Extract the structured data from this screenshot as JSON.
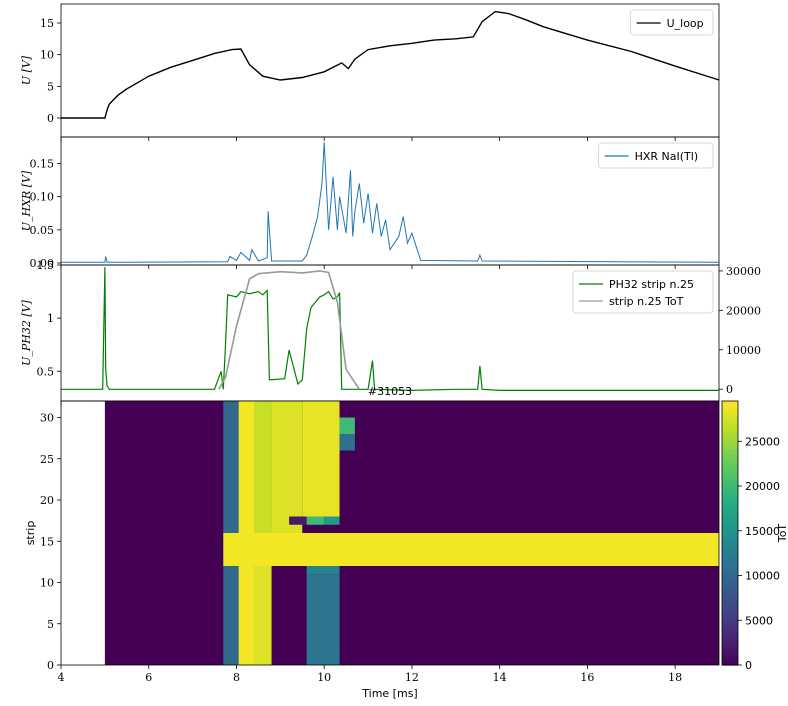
{
  "chart_data": [
    {
      "type": "line",
      "panel": "loop-voltage",
      "ylabel": "U [V]",
      "ylim": [
        -3,
        18
      ],
      "yticks": [
        0,
        5,
        10,
        15
      ],
      "xlim": [
        4,
        19
      ],
      "legend": [
        "U_loop"
      ],
      "legend_position": "top-right",
      "series": [
        {
          "name": "U_loop",
          "color": "#000000",
          "x": [
            4.0,
            5.0,
            5.05,
            5.1,
            5.3,
            5.5,
            5.8,
            6.0,
            6.5,
            7.0,
            7.5,
            7.9,
            8.1,
            8.3,
            8.6,
            9.0,
            9.5,
            10.0,
            10.4,
            10.55,
            10.7,
            11.0,
            11.5,
            12.0,
            12.5,
            13.0,
            13.4,
            13.6,
            13.9,
            14.2,
            14.6,
            15.0,
            16.0,
            17.0,
            18.0,
            19.0
          ],
          "y": [
            0,
            0,
            1.3,
            2.2,
            3.6,
            4.6,
            5.8,
            6.6,
            8.0,
            9.1,
            10.2,
            10.8,
            10.9,
            8.4,
            6.6,
            6.0,
            6.4,
            7.3,
            8.7,
            7.8,
            9.3,
            10.8,
            11.4,
            11.8,
            12.3,
            12.5,
            12.8,
            15.2,
            16.8,
            16.5,
            15.5,
            14.4,
            12.3,
            10.5,
            8.2,
            6.0
          ]
        }
      ]
    },
    {
      "type": "line",
      "panel": "hxr",
      "ylabel": "U_HXR [V]",
      "ylim": [
        -0.003,
        0.19
      ],
      "yticks": [
        0.0,
        0.05,
        0.1,
        0.15
      ],
      "ytick_labels": [
        "0.00",
        "0.05",
        "0.10",
        "0.15"
      ],
      "xlim": [
        4,
        19
      ],
      "legend": [
        "HXR NaI(Tl)"
      ],
      "legend_position": "top-right",
      "series": [
        {
          "name": "HXR NaI(Tl)",
          "color": "#1f77b4",
          "x": [
            4.0,
            5.0,
            5.02,
            5.05,
            7.8,
            7.85,
            8.0,
            8.1,
            8.3,
            8.35,
            8.5,
            8.7,
            8.72,
            8.8,
            9.5,
            9.6,
            9.75,
            9.85,
            9.95,
            10.0,
            10.1,
            10.2,
            10.3,
            10.35,
            10.5,
            10.6,
            10.65,
            10.7,
            10.8,
            10.9,
            11.0,
            11.1,
            11.2,
            11.3,
            11.4,
            11.5,
            11.7,
            11.8,
            11.9,
            12.0,
            12.2,
            13.5,
            13.55,
            13.6,
            19.0
          ],
          "y": [
            0.001,
            0.001,
            0.01,
            0.001,
            0.002,
            0.01,
            0.004,
            0.016,
            0.004,
            0.02,
            0.003,
            0.008,
            0.078,
            0.003,
            0.003,
            0.012,
            0.045,
            0.07,
            0.12,
            0.182,
            0.05,
            0.13,
            0.05,
            0.1,
            0.045,
            0.14,
            0.04,
            0.078,
            0.12,
            0.06,
            0.105,
            0.045,
            0.09,
            0.04,
            0.065,
            0.02,
            0.04,
            0.07,
            0.03,
            0.045,
            0.004,
            0.003,
            0.012,
            0.003,
            0.001
          ]
        }
      ]
    },
    {
      "type": "line",
      "panel": "ph32",
      "ylabel": "U_PH32 [V]",
      "ylim": [
        0.22,
        1.5
      ],
      "yticks": [
        0.5,
        1.0,
        1.5
      ],
      "secondary_ylim": [
        -3000,
        31500
      ],
      "secondary_yticks": [
        0,
        10000,
        20000,
        30000
      ],
      "xlim": [
        4,
        19
      ],
      "legend": [
        "PH32 strip n.25",
        "strip n.25 ToT"
      ],
      "legend_position": "top-right",
      "series": [
        {
          "name": "PH32 strip n.25",
          "color": "#008000",
          "axis": "left",
          "x": [
            4.0,
            4.95,
            5.0,
            5.02,
            5.05,
            5.1,
            7.5,
            7.65,
            7.7,
            7.75,
            7.8,
            8.0,
            8.1,
            8.3,
            8.5,
            8.6,
            8.7,
            8.75,
            9.1,
            9.2,
            9.4,
            9.5,
            9.6,
            9.7,
            9.9,
            10.0,
            10.1,
            10.2,
            10.3,
            10.35,
            10.4,
            11.0,
            11.1,
            11.15,
            12.0,
            13.0,
            13.5,
            13.55,
            13.6,
            14.0,
            15.0,
            16.0,
            17.0,
            18.0,
            19.0
          ],
          "y": [
            0.33,
            0.33,
            1.48,
            0.52,
            0.36,
            0.33,
            0.33,
            0.5,
            0.33,
            0.75,
            1.22,
            1.2,
            1.25,
            1.23,
            1.25,
            1.22,
            1.26,
            0.42,
            0.43,
            0.7,
            0.38,
            0.42,
            0.9,
            1.1,
            1.2,
            1.22,
            1.25,
            1.18,
            1.2,
            1.24,
            0.33,
            0.33,
            0.6,
            0.33,
            0.32,
            0.33,
            0.33,
            0.55,
            0.33,
            0.32,
            0.32,
            0.32,
            0.32,
            0.32,
            0.32
          ]
        },
        {
          "name": "strip n.25 ToT",
          "color": "#999999",
          "axis": "right",
          "x": [
            7.6,
            7.75,
            8.0,
            8.3,
            8.5,
            9.0,
            9.5,
            9.9,
            10.1,
            10.3,
            10.5,
            10.8
          ],
          "y": [
            0,
            3000,
            16000,
            28000,
            29300,
            29800,
            29500,
            30000,
            29600,
            22000,
            5000,
            0
          ]
        }
      ]
    },
    {
      "type": "heatmap",
      "panel": "strip-tot",
      "title": "#31053",
      "xlabel": "Time [ms]",
      "ylabel": "strip",
      "xlim": [
        4,
        19
      ],
      "ylim": [
        0,
        32
      ],
      "xticks": [
        4,
        6,
        8,
        10,
        12,
        14,
        16,
        18
      ],
      "yticks": [
        0,
        5,
        10,
        15,
        20,
        25,
        30
      ],
      "colorbar_label": "ToT",
      "colorbar_range": [
        0,
        29500
      ],
      "colorbar_ticks": [
        0,
        5000,
        10000,
        15000,
        20000,
        25000
      ],
      "colormap": "viridis",
      "background_region": {
        "x": [
          5.0,
          19.0
        ],
        "y": [
          0,
          32
        ],
        "value": 0
      },
      "cells": [
        {
          "x": [
            7.7,
            8.05
          ],
          "y": [
            0,
            32
          ],
          "value": 10000
        },
        {
          "x": [
            8.05,
            8.4
          ],
          "y": [
            0,
            32
          ],
          "value": 29000
        },
        {
          "x": [
            8.4,
            8.8
          ],
          "y": [
            0,
            12
          ],
          "value": 28000
        },
        {
          "x": [
            8.4,
            8.8
          ],
          "y": [
            12,
            32
          ],
          "value": 27000
        },
        {
          "x": [
            8.8,
            9.5
          ],
          "y": [
            15,
            32
          ],
          "value": 28000
        },
        {
          "x": [
            9.5,
            10.35
          ],
          "y": [
            18,
            32
          ],
          "value": 28500
        },
        {
          "x": [
            9.6,
            10.35
          ],
          "y": [
            0,
            11
          ],
          "value": 11500
        },
        {
          "x": [
            9.6,
            10.35
          ],
          "y": [
            11,
            15
          ],
          "value": 13000
        },
        {
          "x": [
            9.2,
            9.6
          ],
          "y": [
            17,
            18
          ],
          "value": 2000
        },
        {
          "x": [
            9.6,
            10.0
          ],
          "y": [
            17,
            18
          ],
          "value": 20000
        },
        {
          "x": [
            10.0,
            10.35
          ],
          "y": [
            17,
            18
          ],
          "value": 16000
        },
        {
          "x": [
            10.35,
            10.7
          ],
          "y": [
            28,
            30
          ],
          "value": 20000
        },
        {
          "x": [
            10.35,
            10.7
          ],
          "y": [
            26,
            28
          ],
          "value": 11000
        },
        {
          "x": [
            7.7,
            19.0
          ],
          "y": [
            12,
            16
          ],
          "value": 29000
        }
      ]
    }
  ],
  "shared_xtick_labels": [
    "4",
    "6",
    "8",
    "10",
    "12",
    "14",
    "16",
    "18"
  ]
}
